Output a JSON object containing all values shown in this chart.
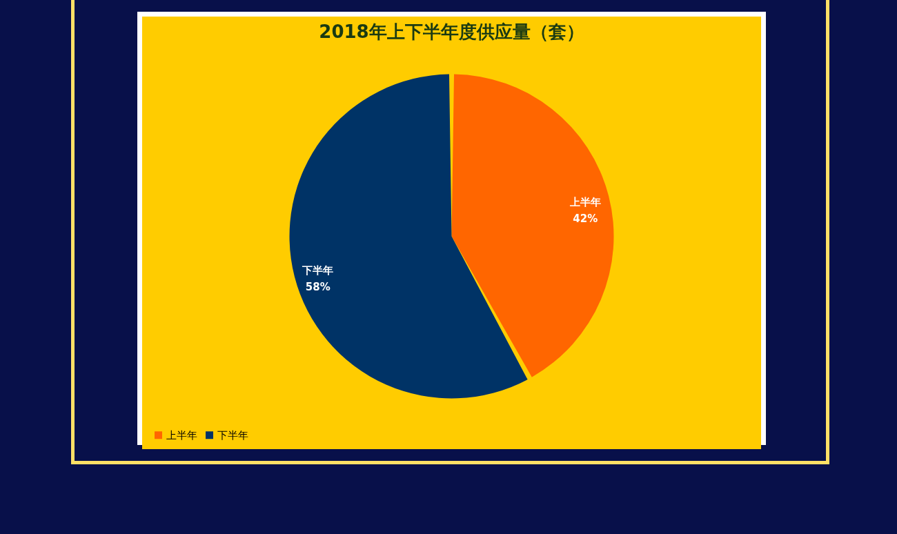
{
  "chart_data": {
    "type": "pie",
    "title": "2018年上下半年度供应量（套）",
    "categories": [
      "上半年",
      "下半年"
    ],
    "values": [
      42,
      58
    ],
    "colors": [
      "#ff6600",
      "#003366"
    ],
    "value_labels": [
      "42%",
      "58%"
    ],
    "legend": "bottom"
  }
}
